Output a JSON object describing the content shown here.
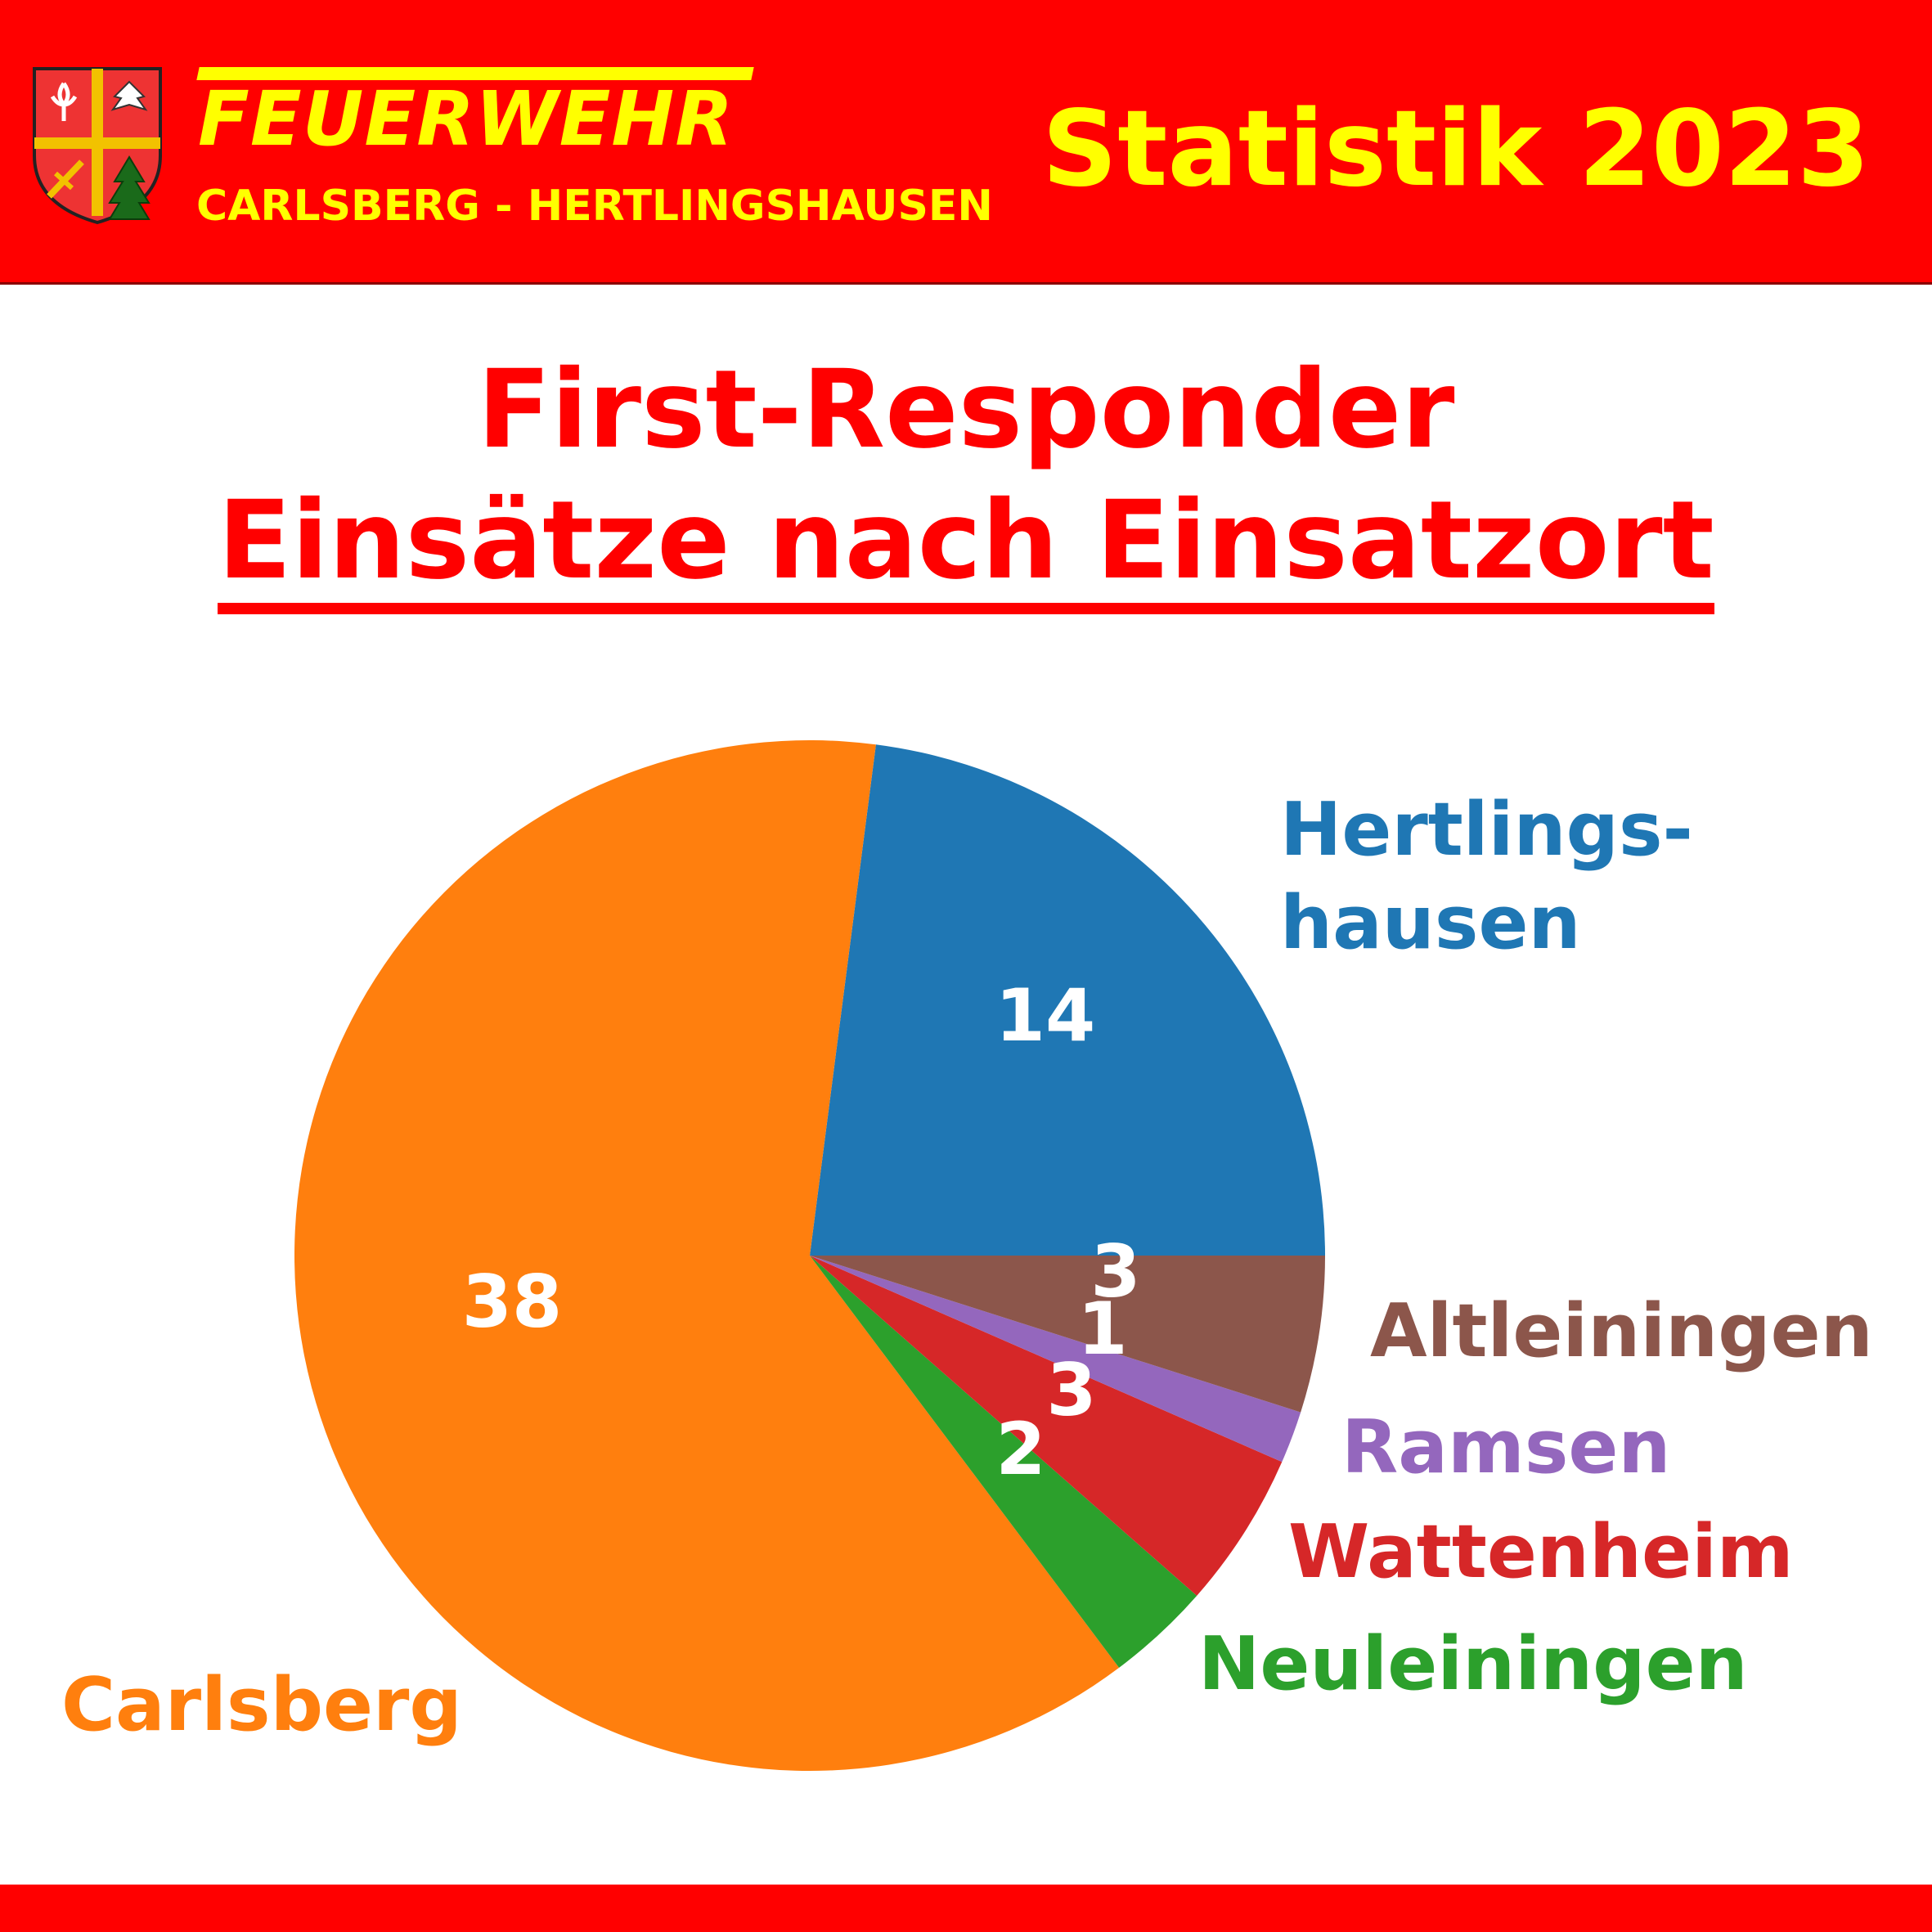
{
  "header": {
    "brand_title": "FEUERWEHR",
    "brand_subtitle": "CARLSBERG - HERTLINGSHAUSEN",
    "statistic_title": "Statistik 2023",
    "crest_icon": "coat-of-arms-icon"
  },
  "colors": {
    "banner": "#ff0000",
    "banner_text": "#ffff00",
    "title_text": "#ff0000"
  },
  "chart_data": {
    "type": "pie",
    "title": "First-Responder",
    "subtitle": "Einsätze nach Einsatzort",
    "start_angle_deg": 0,
    "direction": "counterclockwise",
    "slices": [
      {
        "label": "Hertlings-\nhausen",
        "value": 14,
        "color": "#1f77b4"
      },
      {
        "label": "Carlsberg",
        "value": 38,
        "color": "#ff7f0e"
      },
      {
        "label": "Neuleiningen",
        "value": 2,
        "color": "#2ca02c"
      },
      {
        "label": "Wattenheim",
        "value": 3,
        "color": "#d62728"
      },
      {
        "label": "Ramsen",
        "value": 1,
        "color": "#9467bd"
      },
      {
        "label": "Altleiningen",
        "value": 3,
        "color": "#8c564b"
      }
    ]
  }
}
